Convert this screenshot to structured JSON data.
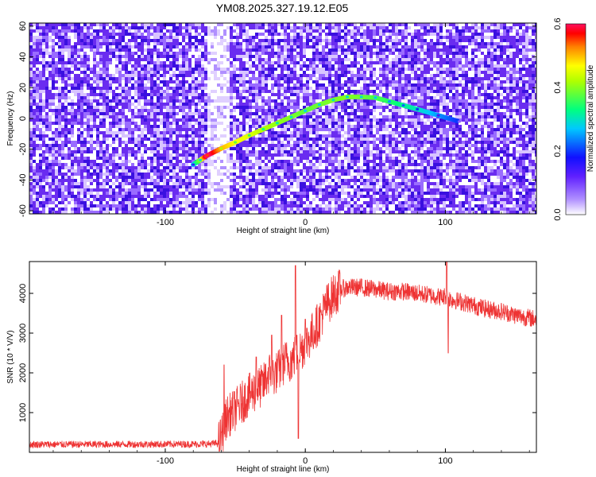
{
  "title": "YM08.2025.327.19.12.E05",
  "chart_data": [
    {
      "type": "heatmap",
      "name": "spectrogram",
      "xlabel": "Height of straight line (km)",
      "ylabel": "Frequency (Hz)",
      "xlim": [
        -197,
        165
      ],
      "ylim": [
        -62,
        62
      ],
      "xticks": [
        -100,
        0,
        100
      ],
      "yticks": [
        -60,
        -40,
        -20,
        0,
        20,
        40,
        60
      ],
      "colorbar": {
        "label": "Normalized spectral amplitude",
        "range": [
          0.0,
          0.6
        ],
        "ticks": [
          "0.0",
          "0.2",
          "0.4",
          "0.6"
        ]
      },
      "noise_band": {
        "x_from": -70,
        "x_to": -55,
        "description_level": "bright (low amplitude)"
      },
      "trace": {
        "x": [
          -80,
          -75,
          -70,
          -60,
          -50,
          -40,
          -30,
          -20,
          -10,
          0,
          10,
          20,
          30,
          40,
          50,
          60,
          70,
          80,
          95,
          110
        ],
        "freq_hz": [
          -30,
          -27,
          -24,
          -19.5,
          -15.5,
          -11,
          -7,
          -3,
          1,
          5,
          9,
          12,
          14,
          14,
          13.5,
          11,
          8.5,
          6,
          2,
          -2
        ],
        "amplitude": [
          0.15,
          0.3,
          0.55,
          0.42,
          0.38,
          0.36,
          0.33,
          0.31,
          0.3,
          0.28,
          0.29,
          0.3,
          0.3,
          0.29,
          0.27,
          0.25,
          0.22,
          0.2,
          0.14,
          0.08
        ]
      }
    },
    {
      "type": "line",
      "name": "snr",
      "xlabel": "Height of straight line (km)",
      "ylabel": "SNR (10 * V/V)",
      "xlim": [
        -197,
        165
      ],
      "ylim": [
        0,
        4800
      ],
      "xticks": [
        -100,
        0,
        100
      ],
      "yticks": [
        1000,
        2000,
        3000,
        4000
      ],
      "color": "#ee3333",
      "x": [
        -197,
        -150,
        -100,
        -70,
        -62,
        -60,
        -56,
        -52,
        -48,
        -44,
        -40,
        -36,
        -30,
        -26,
        -22,
        -18,
        -14,
        -10,
        -6,
        -3,
        0,
        5,
        10,
        15,
        20,
        25,
        30,
        40,
        50,
        60,
        70,
        80,
        90,
        98,
        100,
        102,
        104,
        110,
        120,
        130,
        140,
        150,
        165
      ],
      "y": [
        200,
        200,
        205,
        210,
        230,
        400,
        900,
        1000,
        1150,
        1300,
        1450,
        1550,
        1700,
        2000,
        1950,
        2100,
        2300,
        2300,
        2500,
        2600,
        2700,
        3000,
        3300,
        3700,
        3950,
        4100,
        4150,
        4150,
        4100,
        4050,
        4050,
        4000,
        3950,
        3900,
        3950,
        3900,
        3850,
        3800,
        3700,
        3600,
        3550,
        3450,
        3350
      ],
      "spikes": [
        {
          "x": -58,
          "y": 2200
        },
        {
          "x": -35,
          "y": 2400
        },
        {
          "x": -24,
          "y": 2950
        },
        {
          "x": -17,
          "y": 3450
        },
        {
          "x": -7,
          "y": 4700
        },
        {
          "x": -5,
          "y": 350
        },
        {
          "x": 0,
          "y": 3350
        },
        {
          "x": 101,
          "y": 4800
        },
        {
          "x": 102,
          "y": 2500
        }
      ],
      "noise_amplitude": 170
    }
  ]
}
